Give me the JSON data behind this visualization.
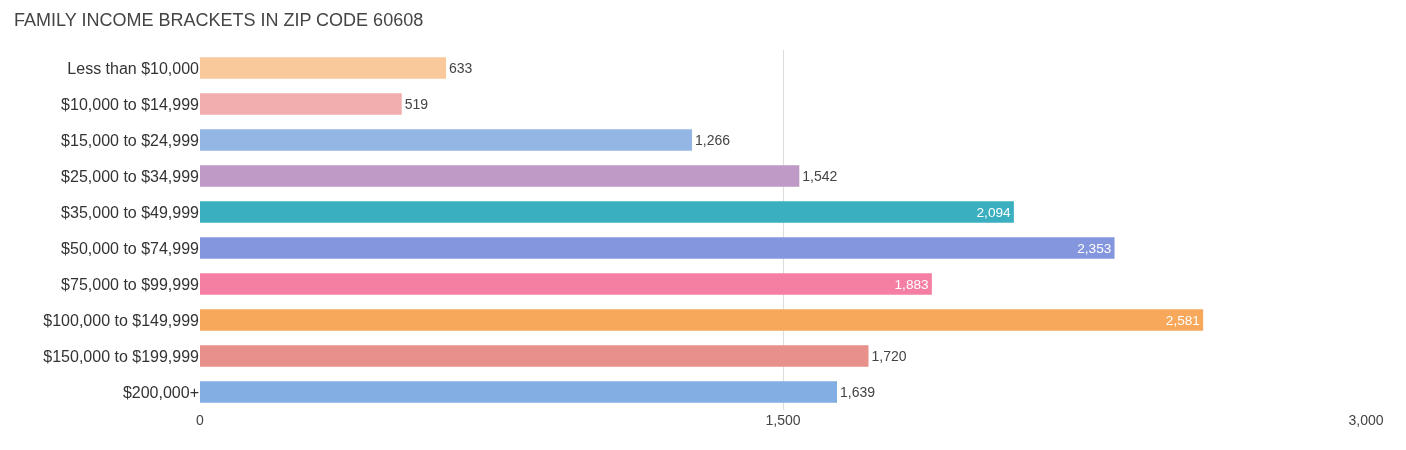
{
  "chart_data": {
    "type": "bar",
    "orientation": "horizontal",
    "title": "FAMILY INCOME BRACKETS IN ZIP CODE 60608",
    "categories": [
      "Less than $10,000",
      "$10,000 to $14,999",
      "$15,000 to $24,999",
      "$25,000 to $34,999",
      "$35,000 to $49,999",
      "$50,000 to $74,999",
      "$75,000 to $99,999",
      "$100,000 to $149,999",
      "$150,000 to $199,999",
      "$200,000+"
    ],
    "values": [
      633,
      519,
      1266,
      1542,
      2094,
      2353,
      1883,
      2581,
      1720,
      1639
    ],
    "colors": [
      "#f9c89b",
      "#f2aeae",
      "#93b6e5",
      "#bf9ac6",
      "#3aafbf",
      "#8497de",
      "#f47fa3",
      "#f8a85a",
      "#e8908b",
      "#83aee3"
    ],
    "xlim": [
      0,
      3000
    ],
    "xticks": [
      0,
      {
        "value": 1500,
        "label": "1,500"
      },
      {
        "value": 3000,
        "label": "3,000"
      }
    ],
    "value_labels": [
      "633",
      "519",
      "1,266",
      "1,542",
      "2,094",
      "2,353",
      "1,883",
      "2,581",
      "1,720",
      "1,639"
    ],
    "grid": "x",
    "legend": false
  }
}
